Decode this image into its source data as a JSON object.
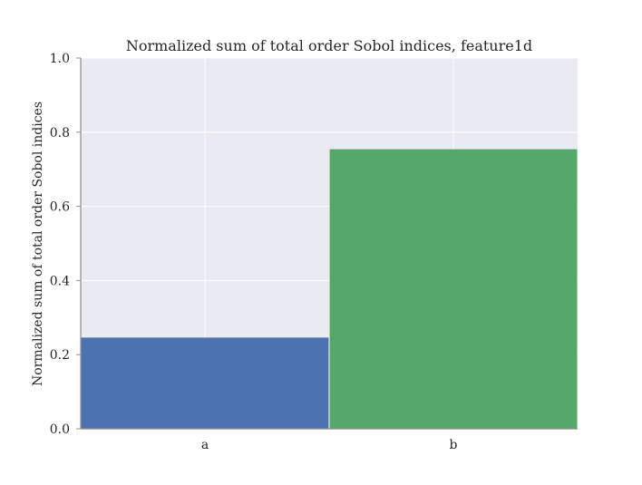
{
  "chart_data": {
    "type": "bar",
    "title": "Normalized sum of total order Sobol indices, feature1d",
    "xlabel": "",
    "ylabel": "Normalized sum of total order Sobol indices",
    "categories": [
      "a",
      "b"
    ],
    "values": [
      0.246,
      0.754
    ],
    "bar_colors": [
      "#4c72b0",
      "#55a868"
    ],
    "ylim": [
      0,
      1.0
    ],
    "yticks": [
      0.0,
      0.2,
      0.4,
      0.6,
      0.8,
      1.0
    ],
    "ytick_labels": [
      "0.0",
      "0.2",
      "0.4",
      "0.6",
      "0.8",
      "1.0"
    ],
    "grid": true,
    "background_color": "#eaeaf2",
    "grid_color": "#ffffff",
    "axis_color": "#8c8c8c"
  }
}
